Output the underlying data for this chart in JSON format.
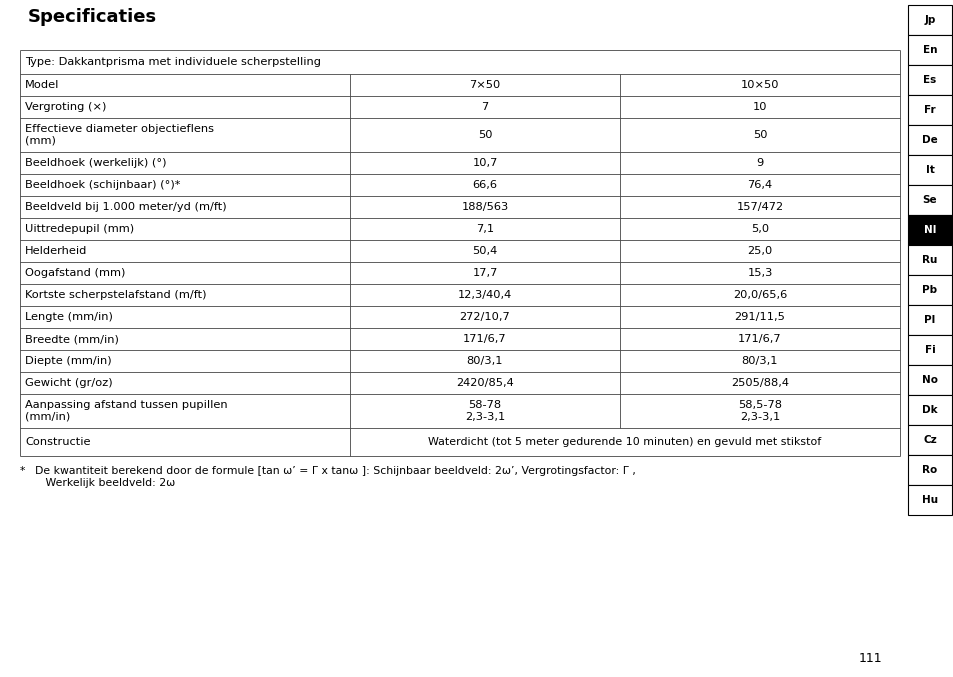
{
  "title": "Specificaties",
  "page_number": "111",
  "background_color": "#ffffff",
  "nav_labels": [
    "Jp",
    "En",
    "Es",
    "Fr",
    "De",
    "It",
    "Se",
    "Nl",
    "Ru",
    "Pb",
    "Pl",
    "Fi",
    "No",
    "Dk",
    "Cz",
    "Ro",
    "Hu"
  ],
  "nav_active": "Nl",
  "type_row": "Type: Dakkantprisma met individuele scherpstelling",
  "rows": [
    [
      "Model",
      "7×50",
      "10×50",
      false
    ],
    [
      "Vergroting (×)",
      "7",
      "10",
      false
    ],
    [
      "Effectieve diameter objectieflens\n(mm)",
      "50",
      "50",
      false
    ],
    [
      "Beeldhoek (werkelijk) (°)",
      "10,7",
      "9",
      false
    ],
    [
      "Beeldhoek (schijnbaar) (°)*",
      "66,6",
      "76,4",
      false
    ],
    [
      "Beeldveld bij 1.000 meter/yd (m/ft)",
      "188/563",
      "157/472",
      false
    ],
    [
      "Uittredepupil (mm)",
      "7,1",
      "5,0",
      false
    ],
    [
      "Helderheid",
      "50,4",
      "25,0",
      false
    ],
    [
      "Oogafstand (mm)",
      "17,7",
      "15,3",
      false
    ],
    [
      "Kortste scherpstelafstand (m/ft)",
      "12,3/40,4",
      "20,0/65,6",
      false
    ],
    [
      "Lengte (mm/in)",
      "272/10,7",
      "291/11,5",
      false
    ],
    [
      "Breedte (mm/in)",
      "171/6,7",
      "171/6,7",
      false
    ],
    [
      "Diepte (mm/in)",
      "80/3,1",
      "80/3,1",
      false
    ],
    [
      "Gewicht (gr/oz)",
      "2420/85,4",
      "2505/88,4",
      false
    ],
    [
      "Aanpassing afstand tussen pupillen\n(mm/in)",
      "58-78\n2,3-3,1",
      "58,5-78\n2,3-3,1",
      false
    ],
    [
      "Constructie",
      "Waterdicht (tot 5 meter gedurende 10 minuten) en gevuld met stikstof",
      "",
      true
    ]
  ],
  "footnote_star": "*",
  "footnote_text": "  De kwantiteit berekend door de formule [tan ω’ = Γ x tanω ]: Schijnbaar beeldveld: 2ω’, Vergrotingsfactor: Γ ,\n     Werkelijk beeldveld: 2ω"
}
